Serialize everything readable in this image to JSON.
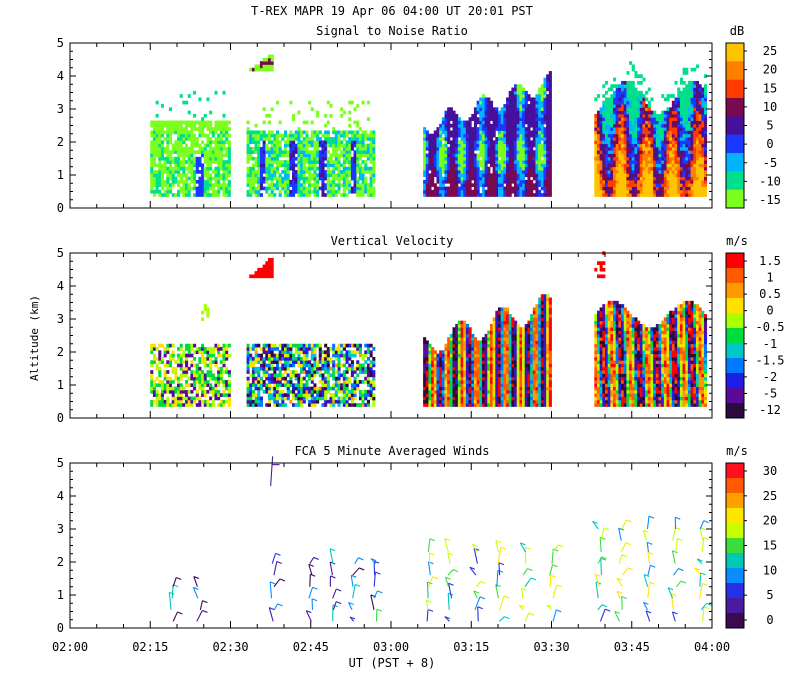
{
  "header": {
    "title_line1": "T-REX   MAPR 19 Apr 06   04:00 UT   20:01   PST",
    "ylabel": "Altitude (km)",
    "xlabel": "UT  (PST + 8)",
    "x_ticks": [
      "02:00",
      "02:15",
      "02:30",
      "02:45",
      "03:00",
      "03:15",
      "03:30",
      "03:45",
      "04:00"
    ]
  },
  "chart_data": [
    {
      "type": "heatmap",
      "title": "Signal to Noise Ratio",
      "units": "dB",
      "xlabel": "UT  (PST + 8)",
      "ylabel": "Altitude (km)",
      "xlim": [
        "02:00",
        "04:00"
      ],
      "ylim": [
        0,
        5
      ],
      "y_ticks": [
        "0",
        "1",
        "2",
        "3",
        "4",
        "5"
      ],
      "colorbar": {
        "labels": [
          "25",
          "20",
          "15",
          "10",
          "5",
          "0",
          "-5",
          "-10",
          "-15"
        ],
        "colors": [
          "#ffc400",
          "#ff8000",
          "#ff3c00",
          "#7a0a50",
          "#46119a",
          "#1a38ff",
          "#00b4ff",
          "#00e08c",
          "#7cff1e"
        ]
      },
      "segments_ut": [
        [
          "02:15",
          "02:30"
        ],
        [
          "02:33",
          "02:57"
        ],
        [
          "03:06",
          "03:30"
        ],
        [
          "03:38",
          "03:59"
        ]
      ]
    },
    {
      "type": "heatmap",
      "title": "Vertical Velocity",
      "units": "m/s",
      "xlabel": "UT  (PST + 8)",
      "ylabel": "Altitude (km)",
      "xlim": [
        "02:00",
        "04:00"
      ],
      "ylim": [
        0,
        5
      ],
      "y_ticks": [
        "0",
        "1",
        "2",
        "3",
        "4",
        "5"
      ],
      "colorbar": {
        "labels": [
          "1.5",
          "1",
          "0.5",
          "0",
          "-0.5",
          "-1",
          "-1.5",
          "-2",
          "-5",
          "-12"
        ],
        "colors": [
          "#ff0000",
          "#ff5a00",
          "#ff9900",
          "#ffe000",
          "#aaff00",
          "#00dc3c",
          "#00c8c8",
          "#0078ff",
          "#1e1ee6",
          "#5a0a9a",
          "#2c0a3c"
        ]
      },
      "segments_ut": [
        [
          "02:15",
          "02:30"
        ],
        [
          "02:33",
          "02:57"
        ],
        [
          "03:06",
          "03:30"
        ],
        [
          "03:38",
          "03:59"
        ]
      ]
    },
    {
      "type": "scatter",
      "subtype": "wind-barbs",
      "title": "FCA 5 Minute Averaged Winds",
      "units": "m/s",
      "xlabel": "UT  (PST + 8)",
      "ylabel": "Altitude (km)",
      "xlim": [
        "02:00",
        "04:00"
      ],
      "ylim": [
        0,
        5
      ],
      "y_ticks": [
        "0",
        "1",
        "2",
        "3",
        "4",
        "5"
      ],
      "colorbar": {
        "labels": [
          "30",
          "25",
          "20",
          "15",
          "10",
          "5",
          "0"
        ],
        "colors": [
          "#ff1020",
          "#ff5a00",
          "#ffa000",
          "#ffe600",
          "#c8ff00",
          "#3cdc3c",
          "#00c8b4",
          "#0a8cff",
          "#2830e6",
          "#4a1aa0",
          "#3c0a50"
        ]
      },
      "profile_times_min": [
        19,
        24,
        38,
        45,
        49,
        53,
        57,
        67,
        71,
        76,
        80,
        85,
        90,
        99,
        103,
        108,
        113,
        118
      ]
    }
  ]
}
